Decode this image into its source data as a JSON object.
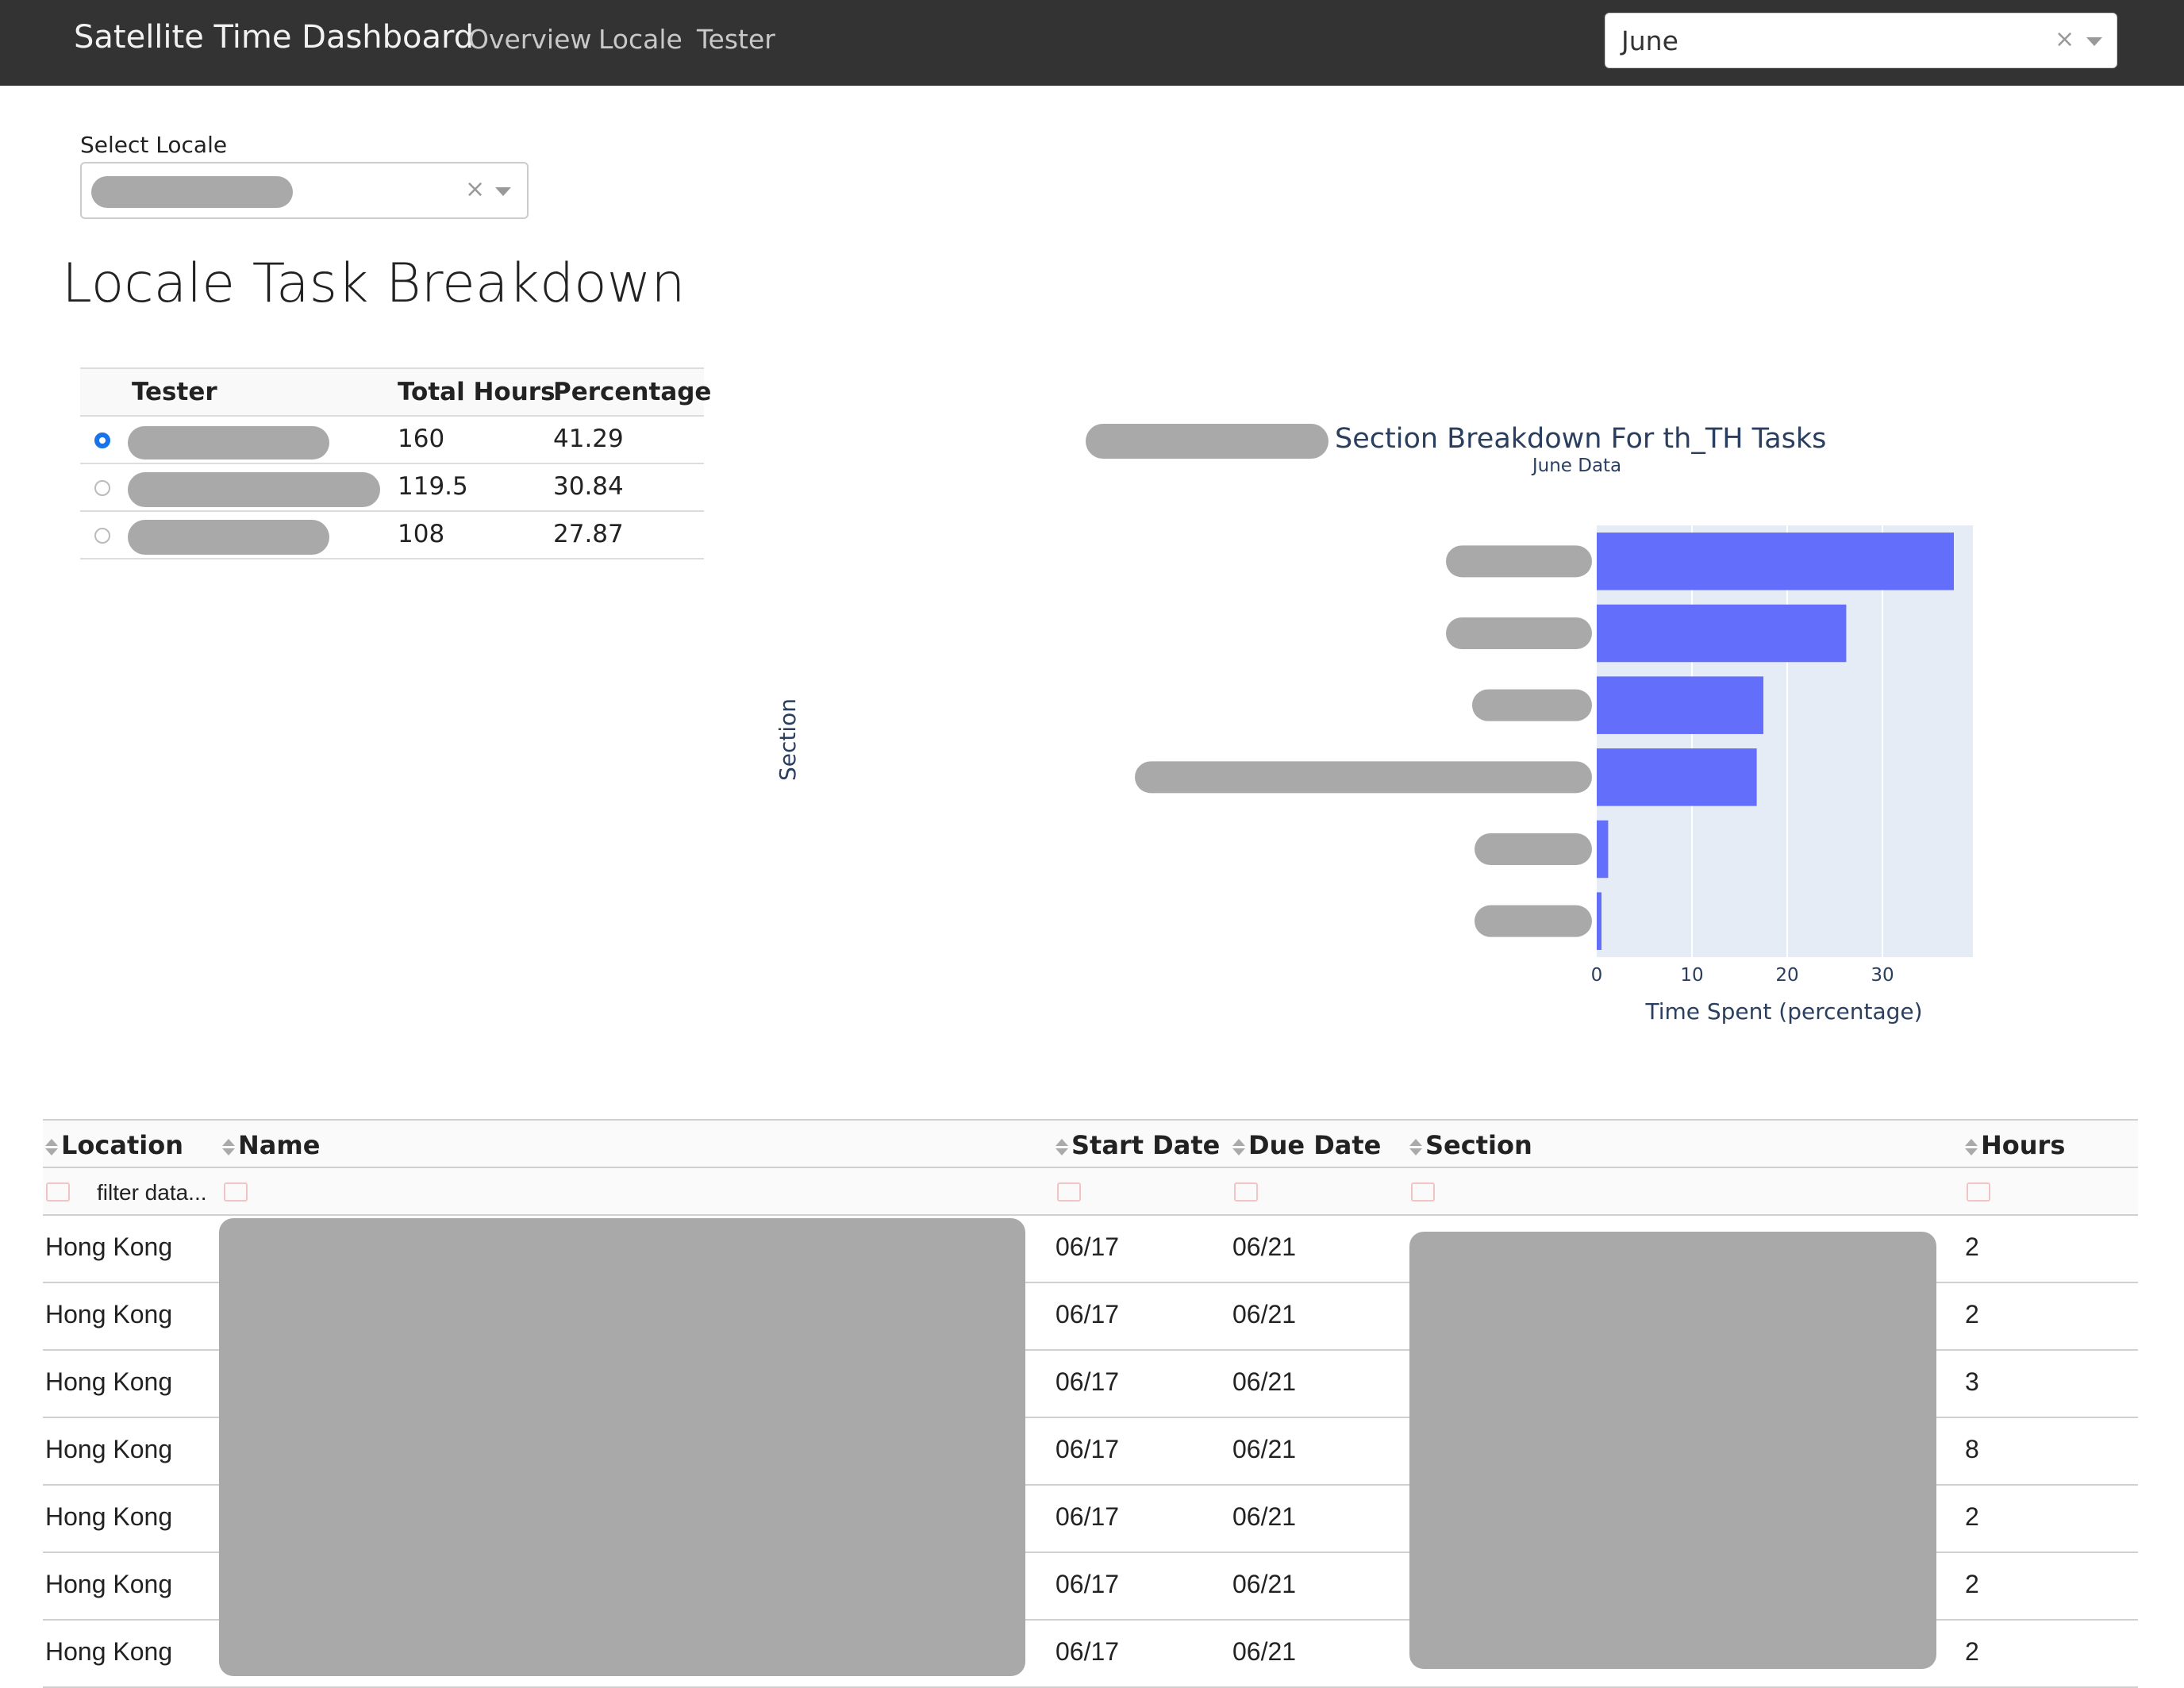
{
  "nav": {
    "brand": "Satellite Time Dashboard",
    "links": [
      "Overview",
      "Locale",
      "Tester"
    ],
    "month_value": "June",
    "clear_glyph": "×"
  },
  "locale_select": {
    "label": "Select Locale",
    "clear_glyph": "×"
  },
  "page_title": "Locale Task Breakdown",
  "tester_table": {
    "headers": [
      "Tester",
      "Total Hours",
      "Percentage"
    ],
    "rows": [
      {
        "selected": true,
        "total_hours": "160",
        "percentage": "41.29"
      },
      {
        "selected": false,
        "total_hours": "119.5",
        "percentage": "30.84"
      },
      {
        "selected": false,
        "total_hours": "108",
        "percentage": "27.87"
      }
    ]
  },
  "chart_data": {
    "type": "bar",
    "orientation": "horizontal",
    "title": "Section Breakdown For th_TH Tasks",
    "subtitle": "June Data",
    "xlabel": "Time Spent (percentage)",
    "ylabel": "Section",
    "xlim": [
      0,
      39.5
    ],
    "xticks": [
      0,
      10,
      20,
      30
    ],
    "values": [
      37.5,
      26.2,
      17.5,
      16.8,
      1.2,
      0.5
    ],
    "bar_color": "#636efa",
    "plot_bg": "#e5ecf6",
    "grid": true
  },
  "data_table": {
    "headers": [
      "Location",
      "Name",
      "Start Date",
      "Due Date",
      "Section",
      "Hours"
    ],
    "filter_placeholder": "filter data...",
    "rows": [
      {
        "location": "Hong Kong",
        "start": "06/17",
        "due": "06/21",
        "hours": "2"
      },
      {
        "location": "Hong Kong",
        "start": "06/17",
        "due": "06/21",
        "hours": "2"
      },
      {
        "location": "Hong Kong",
        "start": "06/17",
        "due": "06/21",
        "hours": "3"
      },
      {
        "location": "Hong Kong",
        "start": "06/17",
        "due": "06/21",
        "hours": "8"
      },
      {
        "location": "Hong Kong",
        "start": "06/17",
        "due": "06/21",
        "hours": "2"
      },
      {
        "location": "Hong Kong",
        "start": "06/17",
        "due": "06/21",
        "hours": "2"
      },
      {
        "location": "Hong Kong",
        "start": "06/17",
        "due": "06/21",
        "hours": "2"
      }
    ]
  }
}
